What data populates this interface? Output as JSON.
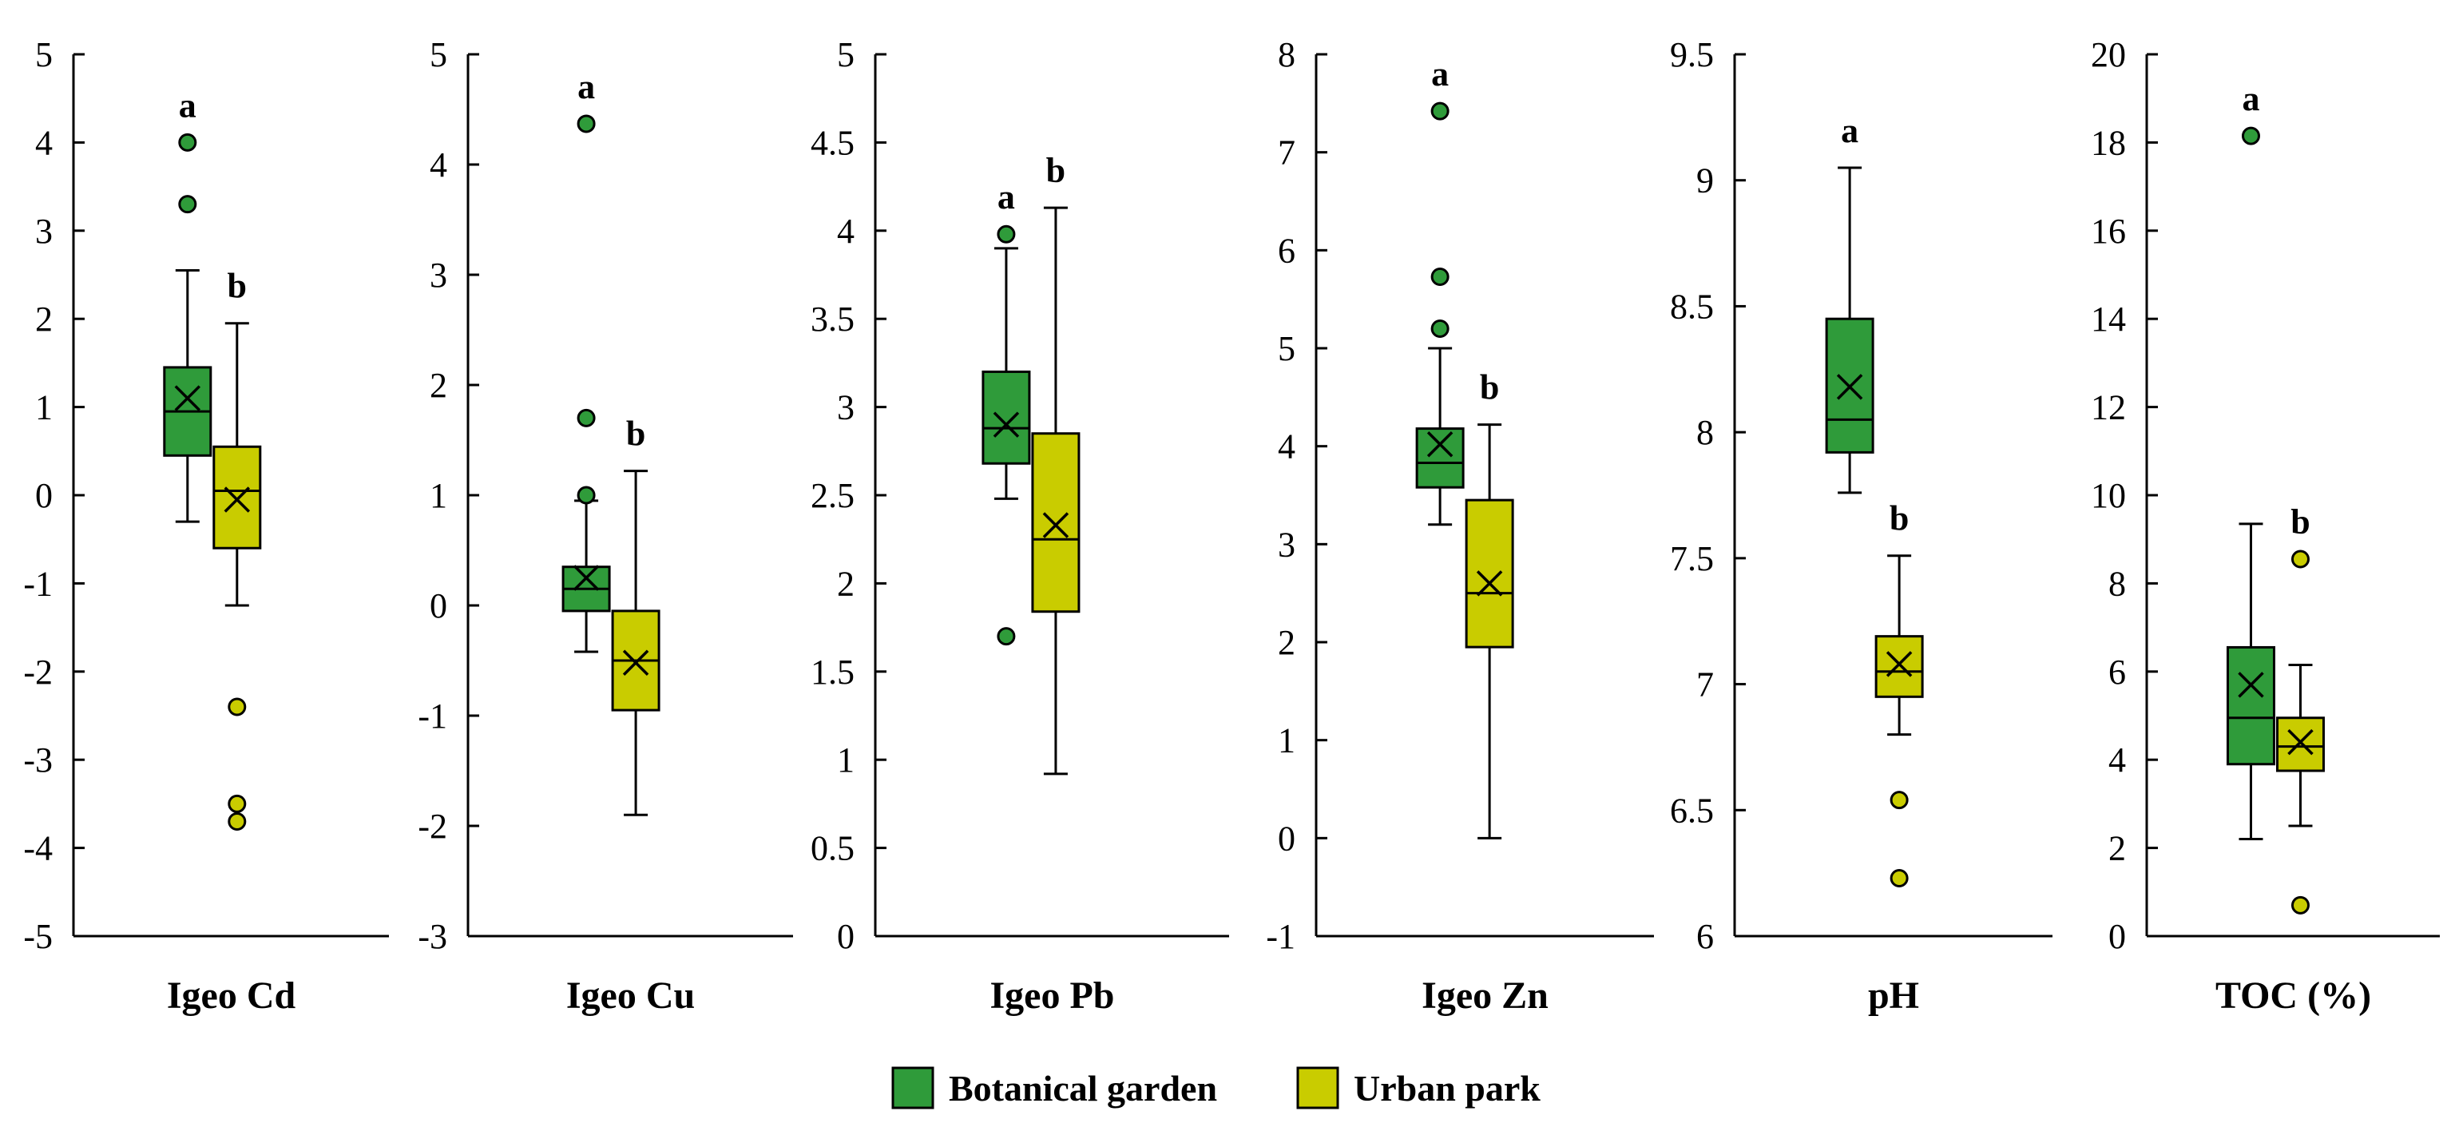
{
  "chart_data": {
    "type": "box",
    "legend": {
      "position": "bottom-center",
      "entries": [
        {
          "name": "Botanical garden",
          "color": "#2f9b3a"
        },
        {
          "name": "Urban park",
          "color": "#c9cc00"
        }
      ]
    },
    "panels": [
      {
        "label": "Igeo Cd",
        "ylim": [
          -5,
          5
        ],
        "ticks": [
          "-5",
          "-4",
          "-3",
          "-2",
          "-1",
          "0",
          "1",
          "2",
          "3",
          "4",
          "5"
        ],
        "groups": [
          {
            "series": "Botanical garden",
            "min": -0.3,
            "q1": 0.45,
            "median": 0.95,
            "q3": 1.45,
            "max": 2.55,
            "mean": 1.1,
            "outliers": [
              3.3,
              4.0
            ],
            "letter": "a"
          },
          {
            "series": "Urban park",
            "min": -1.25,
            "q1": -0.6,
            "median": 0.05,
            "q3": 0.55,
            "max": 1.95,
            "mean": -0.05,
            "outliers": [
              -2.4,
              -3.5,
              -3.7
            ],
            "letter": "b"
          }
        ]
      },
      {
        "label": "Igeo Cu",
        "ylim": [
          -3,
          5
        ],
        "ticks": [
          "-3",
          "-2",
          "-1",
          "0",
          "1",
          "2",
          "3",
          "4",
          "5"
        ],
        "groups": [
          {
            "series": "Botanical garden",
            "min": -0.42,
            "q1": -0.05,
            "median": 0.15,
            "q3": 0.35,
            "max": 0.95,
            "mean": 0.25,
            "outliers": [
              1.0,
              1.7,
              4.37
            ],
            "letter": "a"
          },
          {
            "series": "Urban park",
            "min": -1.9,
            "q1": -0.95,
            "median": -0.5,
            "q3": -0.05,
            "max": 1.22,
            "mean": -0.52,
            "outliers": [],
            "letter": "b"
          }
        ]
      },
      {
        "label": "Igeo Pb",
        "ylim": [
          0,
          5
        ],
        "ticks": [
          "0",
          "0.5",
          "1",
          "1.5",
          "2",
          "2.5",
          "3",
          "3.5",
          "4",
          "4.5",
          "5"
        ],
        "groups": [
          {
            "series": "Botanical garden",
            "min": 2.48,
            "q1": 2.68,
            "median": 2.88,
            "q3": 3.2,
            "max": 3.9,
            "mean": 2.9,
            "outliers": [
              3.98,
              1.7
            ],
            "letter": "a"
          },
          {
            "series": "Urban park",
            "min": 0.92,
            "q1": 1.84,
            "median": 2.25,
            "q3": 2.85,
            "max": 4.13,
            "mean": 2.33,
            "outliers": [],
            "letter": "b"
          }
        ]
      },
      {
        "label": "Igeo Zn",
        "ylim": [
          -1,
          8
        ],
        "ticks": [
          "-1",
          "0",
          "1",
          "2",
          "3",
          "4",
          "5",
          "6",
          "7",
          "8"
        ],
        "groups": [
          {
            "series": "Botanical garden",
            "min": 3.2,
            "q1": 3.58,
            "median": 3.83,
            "q3": 4.18,
            "max": 5.0,
            "mean": 4.02,
            "outliers": [
              5.2,
              5.73,
              7.42
            ],
            "letter": "a"
          },
          {
            "series": "Urban park",
            "min": 0.0,
            "q1": 1.95,
            "median": 2.5,
            "q3": 3.45,
            "max": 4.22,
            "mean": 2.6,
            "outliers": [],
            "letter": "b"
          }
        ]
      },
      {
        "label": "pH",
        "ylim": [
          6,
          9.5
        ],
        "ticks": [
          "6",
          "6.5",
          "7",
          "7.5",
          "8",
          "8.5",
          "9",
          "9.5"
        ],
        "groups": [
          {
            "series": "Botanical garden",
            "min": 7.76,
            "q1": 7.92,
            "median": 8.05,
            "q3": 8.45,
            "max": 9.05,
            "mean": 8.18,
            "outliers": [],
            "letter": "a"
          },
          {
            "series": "Urban park",
            "min": 6.8,
            "q1": 6.95,
            "median": 7.05,
            "q3": 7.19,
            "max": 7.51,
            "mean": 7.08,
            "outliers": [
              6.54,
              6.23
            ],
            "letter": "b"
          }
        ]
      },
      {
        "label": "TOC (%)",
        "ylim": [
          0,
          20
        ],
        "ticks": [
          "0",
          "2",
          "4",
          "6",
          "8",
          "10",
          "12",
          "14",
          "16",
          "18",
          "20"
        ],
        "groups": [
          {
            "series": "Botanical garden",
            "min": 2.2,
            "q1": 3.9,
            "median": 4.95,
            "q3": 6.55,
            "max": 9.35,
            "mean": 5.7,
            "outliers": [
              18.15
            ],
            "letter": "a"
          },
          {
            "series": "Urban park",
            "min": 2.5,
            "q1": 3.75,
            "median": 4.3,
            "q3": 4.95,
            "max": 6.15,
            "mean": 4.4,
            "outliers": [
              8.55,
              0.7
            ],
            "letter": "b"
          }
        ]
      }
    ]
  }
}
